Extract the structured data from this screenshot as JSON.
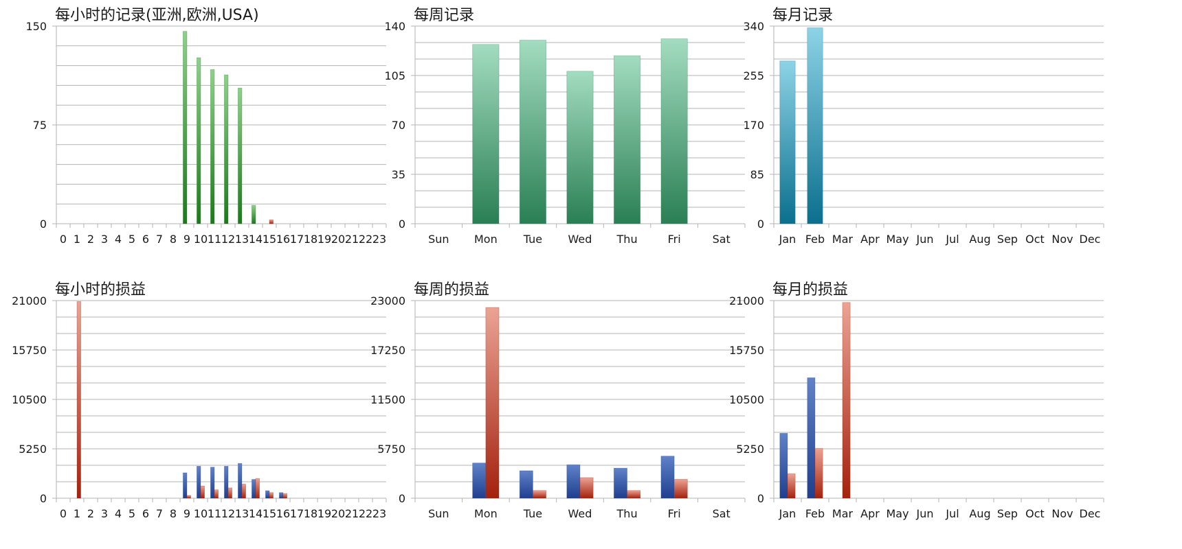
{
  "colors": {
    "green_top": "#8fd08a",
    "green_bottom": "#1a7a1a",
    "teal_top": "#a3dcc0",
    "teal_bottom": "#2a7f54",
    "cyan_top": "#8dd3e6",
    "cyan_bottom": "#0b6f8e",
    "blue_top": "#5f82c8",
    "blue_bottom": "#1f3f8f",
    "red_top": "#eba394",
    "red_bottom": "#a3220e",
    "grid": "#b3b3b3"
  },
  "chart_data": [
    {
      "type": "bar",
      "title": "每小时的记录(亚洲,欧洲,USA)",
      "categories": [
        "0",
        "1",
        "2",
        "3",
        "4",
        "5",
        "6",
        "7",
        "8",
        "9",
        "10",
        "11",
        "12",
        "13",
        "14",
        "15",
        "16",
        "17",
        "18",
        "19",
        "20",
        "21",
        "22",
        "23"
      ],
      "series": [
        {
          "values": [
            0,
            0,
            0,
            0,
            0,
            0,
            0,
            0,
            0,
            146,
            126,
            117,
            113,
            103,
            14,
            0,
            0,
            0,
            0,
            0,
            0,
            0,
            0,
            0
          ],
          "color": "green"
        },
        {
          "values": [
            0,
            0,
            0,
            0,
            0,
            0,
            0,
            0,
            0,
            0,
            0,
            0,
            0,
            0,
            0,
            3,
            0,
            0,
            0,
            0,
            0,
            0,
            0,
            0
          ],
          "color": "red"
        }
      ],
      "ylim": [
        0,
        150
      ],
      "yticks": [
        "0",
        "75",
        "150"
      ],
      "minor_gridlines": 4,
      "grid": true
    },
    {
      "type": "bar",
      "title": "每周记录",
      "categories": [
        "Sun",
        "Mon",
        "Tue",
        "Wed",
        "Thu",
        "Fri",
        "Sat"
      ],
      "series": [
        {
          "values": [
            0,
            127,
            130,
            108,
            119,
            131,
            0
          ],
          "color": "teal"
        }
      ],
      "ylim": [
        0,
        140
      ],
      "yticks": [
        "0",
        "35",
        "70",
        "105",
        "140"
      ],
      "minor_gridlines": 2,
      "grid": true
    },
    {
      "type": "bar",
      "title": "每月记录",
      "categories": [
        "Jan",
        "Feb",
        "Mar",
        "Apr",
        "May",
        "Jun",
        "Jul",
        "Aug",
        "Sep",
        "Oct",
        "Nov",
        "Dec"
      ],
      "series": [
        {
          "values": [
            280,
            337,
            0,
            0,
            0,
            0,
            0,
            0,
            0,
            0,
            0,
            0
          ],
          "color": "cyan"
        }
      ],
      "ylim": [
        0,
        340
      ],
      "yticks": [
        "0",
        "85",
        "170",
        "255",
        "340"
      ],
      "minor_gridlines": 2,
      "grid": true
    },
    {
      "type": "bar",
      "title": "每小时的损益",
      "categories": [
        "0",
        "1",
        "2",
        "3",
        "4",
        "5",
        "6",
        "7",
        "8",
        "9",
        "10",
        "11",
        "12",
        "13",
        "14",
        "15",
        "16",
        "17",
        "18",
        "19",
        "20",
        "21",
        "22",
        "23"
      ],
      "series": [
        {
          "values": [
            0,
            0,
            0,
            0,
            0,
            0,
            0,
            0,
            0,
            2700,
            3400,
            3300,
            3400,
            3700,
            2000,
            800,
            600,
            0,
            0,
            0,
            0,
            0,
            0,
            0
          ],
          "color": "blue"
        },
        {
          "values": [
            0,
            20900,
            0,
            0,
            0,
            0,
            0,
            0,
            0,
            300,
            1300,
            900,
            1100,
            1500,
            2100,
            600,
            500,
            0,
            0,
            0,
            0,
            0,
            0,
            0
          ],
          "color": "red"
        }
      ],
      "ylim": [
        0,
        21000
      ],
      "yticks": [
        "0",
        "5250",
        "10500",
        "15750",
        "21000"
      ],
      "minor_gridlines": 2,
      "grid": true
    },
    {
      "type": "bar",
      "title": "每周的损益",
      "categories": [
        "Sun",
        "Mon",
        "Tue",
        "Wed",
        "Thu",
        "Fri",
        "Sat"
      ],
      "series": [
        {
          "values": [
            0,
            4100,
            3200,
            3900,
            3500,
            4900,
            0
          ],
          "color": "blue"
        },
        {
          "values": [
            0,
            22200,
            900,
            2400,
            900,
            2200,
            0
          ],
          "color": "red"
        }
      ],
      "ylim": [
        0,
        23000
      ],
      "yticks": [
        "0",
        "5750",
        "11500",
        "17250",
        "23000"
      ],
      "minor_gridlines": 2,
      "grid": true
    },
    {
      "type": "bar",
      "title": "每月的损益",
      "categories": [
        "Jan",
        "Feb",
        "Mar",
        "Apr",
        "May",
        "Jun",
        "Jul",
        "Aug",
        "Sep",
        "Oct",
        "Nov",
        "Dec"
      ],
      "series": [
        {
          "values": [
            6900,
            12800,
            0,
            0,
            0,
            0,
            0,
            0,
            0,
            0,
            0,
            0
          ],
          "color": "blue"
        },
        {
          "values": [
            2600,
            5300,
            20800,
            0,
            0,
            0,
            0,
            0,
            0,
            0,
            0,
            0
          ],
          "color": "red"
        }
      ],
      "ylim": [
        0,
        21000
      ],
      "yticks": [
        "0",
        "5250",
        "10500",
        "15750",
        "21000"
      ],
      "minor_gridlines": 2,
      "grid": true
    }
  ]
}
